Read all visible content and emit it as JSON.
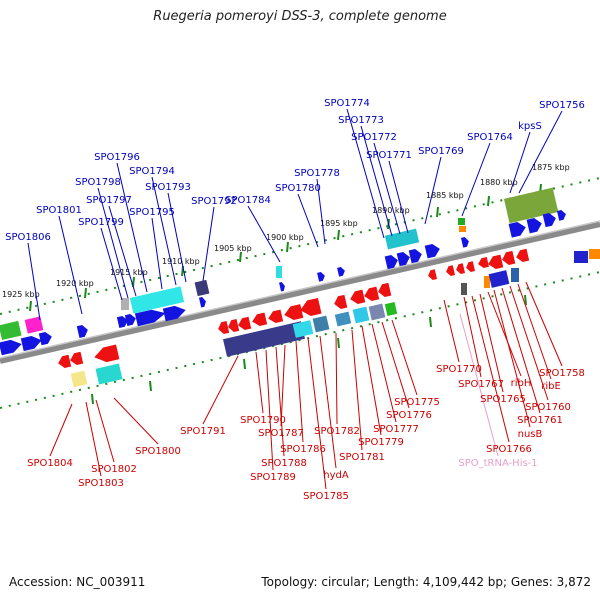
{
  "title": "Ruegeria pomeroyi DSS-3, complete genome",
  "footer": {
    "accession": "Accession: NC_003911",
    "summary": "Topology: circular; Length: 4,109,442 bp; Genes: 3,872"
  },
  "scale_labels": [
    "1875 kbp",
    "1880 kbp",
    "1885 kbp",
    "1890 kbp",
    "1895 kbp",
    "1900 kbp",
    "1905 kbp",
    "1910 kbp",
    "1915 kbp",
    "1920 kbp",
    "1925 kbp"
  ],
  "colors": {
    "forward_label": "#0000bb",
    "reverse_label": "#cc0000",
    "trna_label": "#e8a0c8",
    "backbone": "#8c8c8c",
    "ticks": "#1a8a1a"
  },
  "forward_genes": [
    "SPO1756",
    "kpsS",
    "SPO1764",
    "SPO1769",
    "SPO1771",
    "SPO1772",
    "SPO1773",
    "SPO1774",
    "SPO1778",
    "SPO1780",
    "SPO1784",
    "SPO1792",
    "SPO1793",
    "SPO1794",
    "SPO1795",
    "SPO1796",
    "SPO1797",
    "SPO1798",
    "SPO1799",
    "SPO1801",
    "SPO1806"
  ],
  "reverse_genes": [
    "SPO1758",
    "ribE",
    "SPO1760",
    "SPO1761",
    "nusB",
    "ribH",
    "SPO1765",
    "SPO1766",
    "SPO1767",
    "SPO1770",
    "SPO1775",
    "SPO1776",
    "SPO1777",
    "SPO1779",
    "SPO1781",
    "SPO1782",
    "hydA",
    "SPO1785",
    "SPO1786",
    "SPO1787",
    "SPO1788",
    "SPO1789",
    "SPO1790",
    "SPO1791",
    "SPO1800",
    "SPO1802",
    "SPO1803",
    "SPO1804"
  ],
  "trna_genes": [
    "SPO_tRNA-His-1"
  ]
}
